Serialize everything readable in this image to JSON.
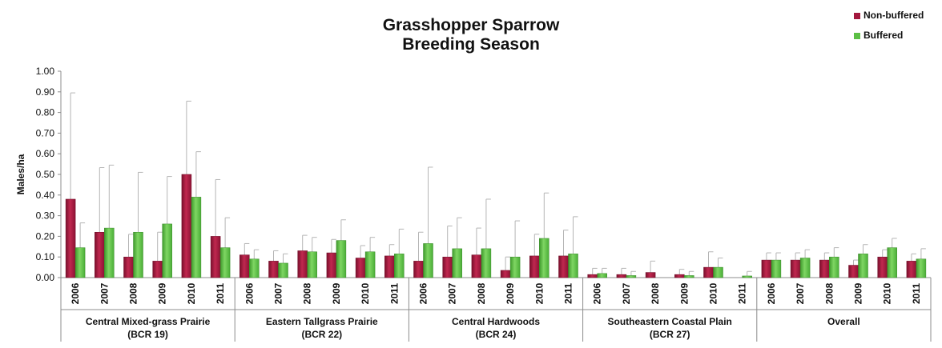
{
  "chart_data": {
    "type": "bar",
    "title": "Grasshopper Sparrow",
    "subtitle": "Breeding Season",
    "ylabel": "Males/ha",
    "ylim": [
      0,
      1.0
    ],
    "yticks": [
      "0.00",
      "0.10",
      "0.20",
      "0.30",
      "0.40",
      "0.50",
      "0.60",
      "0.70",
      "0.80",
      "0.90",
      "1.00"
    ],
    "legend_position": "top-right",
    "colors": {
      "Non-buffered": "#a3173d",
      "Buffered": "#5cbf45"
    },
    "years": [
      "2006",
      "2007",
      "2008",
      "2009",
      "2010",
      "2011"
    ],
    "groups": [
      {
        "name": "Central Mixed-grass Prairie",
        "code": "(BCR 19)",
        "series": [
          {
            "name": "Non-buffered",
            "values": [
              0.38,
              0.22,
              0.1,
              0.08,
              0.5,
              0.2
            ],
            "error_upper": [
              0.895,
              0.533,
              0.21,
              0.22,
              0.855,
              0.475
            ]
          },
          {
            "name": "Buffered",
            "values": [
              0.145,
              0.24,
              0.22,
              0.26,
              0.39,
              0.145
            ],
            "error_upper": [
              0.265,
              0.545,
              0.51,
              0.49,
              0.61,
              0.29
            ]
          }
        ]
      },
      {
        "name": "Eastern Tallgrass Prairie",
        "code": "(BCR 22)",
        "series": [
          {
            "name": "Non-buffered",
            "values": [
              0.11,
              0.08,
              0.13,
              0.12,
              0.095,
              0.105
            ],
            "error_upper": [
              0.165,
              0.13,
              0.205,
              0.185,
              0.155,
              0.16
            ]
          },
          {
            "name": "Buffered",
            "values": [
              0.09,
              0.07,
              0.125,
              0.18,
              0.125,
              0.115
            ],
            "error_upper": [
              0.135,
              0.115,
              0.195,
              0.28,
              0.195,
              0.235
            ]
          }
        ]
      },
      {
        "name": "Central Hardwoods",
        "code": "(BCR 24)",
        "series": [
          {
            "name": "Non-buffered",
            "values": [
              0.08,
              0.1,
              0.11,
              0.035,
              0.105,
              0.105
            ],
            "error_upper": [
              0.22,
              0.25,
              0.24,
              0.1,
              0.21,
              0.23
            ]
          },
          {
            "name": "Buffered",
            "values": [
              0.165,
              0.14,
              0.14,
              0.1,
              0.19,
              0.115
            ],
            "error_upper": [
              0.535,
              0.29,
              0.38,
              0.275,
              0.41,
              0.295
            ]
          }
        ]
      },
      {
        "name": "Southeastern Coastal Plain",
        "code": "(BCR 27)",
        "series": [
          {
            "name": "Non-buffered",
            "values": [
              0.015,
              0.015,
              0.025,
              0.015,
              0.05,
              0.0
            ],
            "error_upper": [
              0.045,
              0.045,
              0.08,
              0.04,
              0.125,
              0.0
            ]
          },
          {
            "name": "Buffered",
            "values": [
              0.02,
              0.01,
              0.0,
              0.01,
              0.05,
              0.008
            ],
            "error_upper": [
              0.045,
              0.03,
              0.0,
              0.03,
              0.095,
              0.03
            ]
          }
        ]
      },
      {
        "name": "Overall",
        "code": "",
        "series": [
          {
            "name": "Non-buffered",
            "values": [
              0.085,
              0.085,
              0.085,
              0.06,
              0.1,
              0.08
            ],
            "error_upper": [
              0.12,
              0.12,
              0.12,
              0.085,
              0.135,
              0.115
            ]
          },
          {
            "name": "Buffered",
            "values": [
              0.085,
              0.095,
              0.1,
              0.115,
              0.145,
              0.09
            ],
            "error_upper": [
              0.12,
              0.135,
              0.145,
              0.16,
              0.19,
              0.14
            ]
          }
        ]
      }
    ]
  }
}
